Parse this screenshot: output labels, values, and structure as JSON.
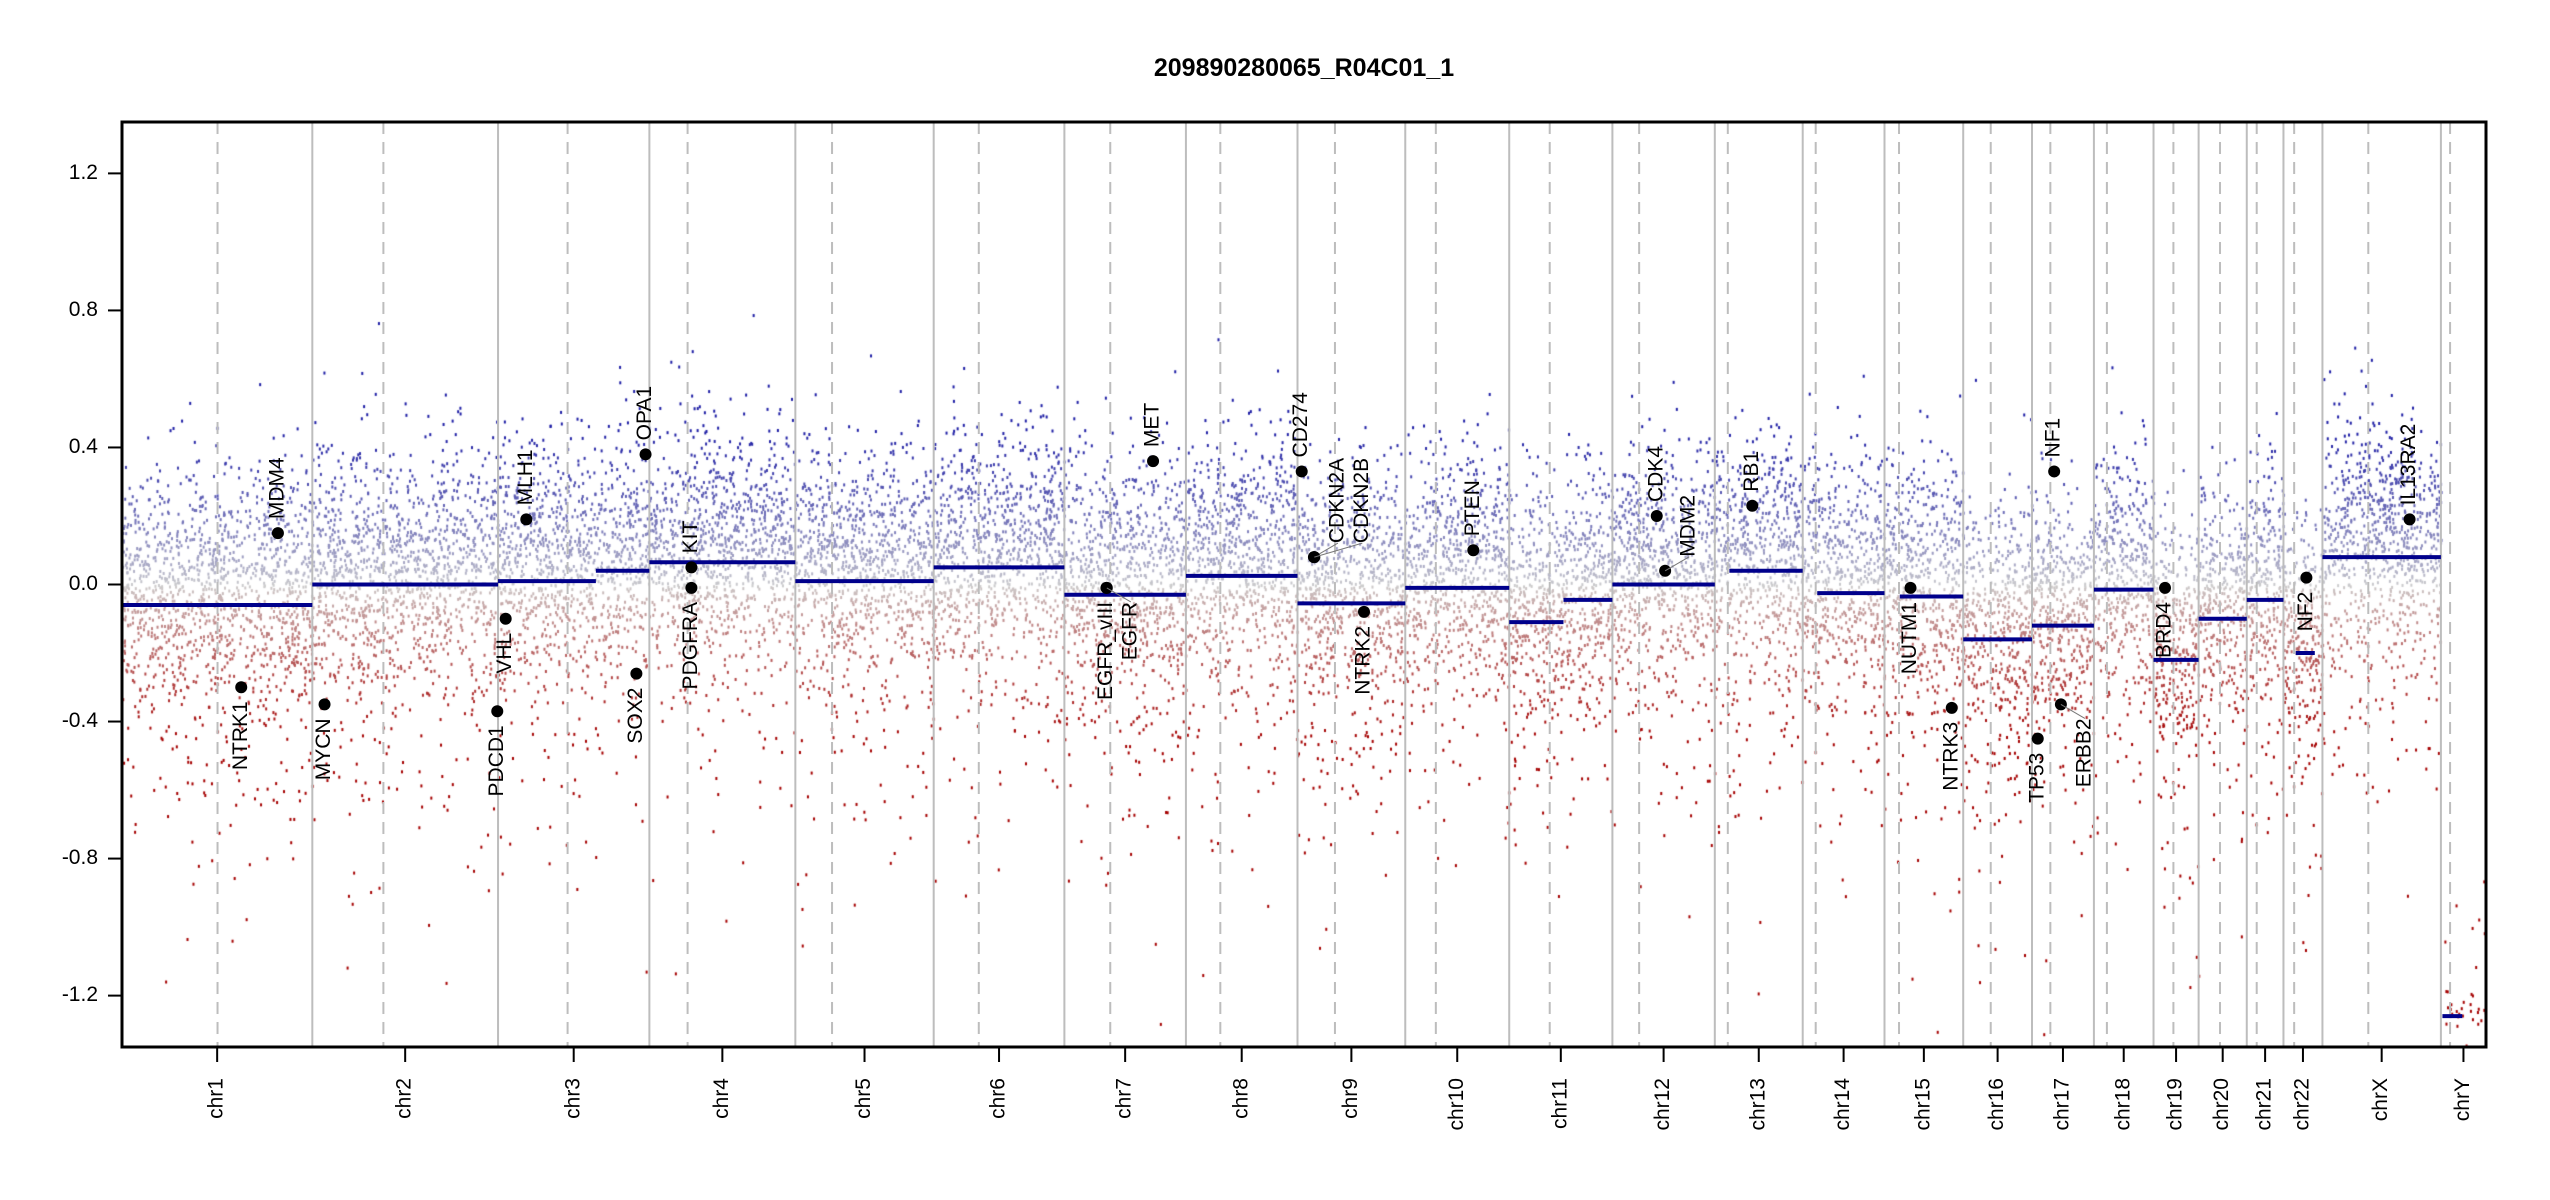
{
  "chart_data": {
    "type": "scatter",
    "title": "209890280065_R04C01_1",
    "xlabel": "",
    "ylabel": "",
    "ylim": [
      -1.35,
      1.35
    ],
    "yticks": [
      1.2,
      0.8,
      0.4,
      0.0,
      -0.4,
      -0.8,
      -1.2
    ],
    "ytick_labels": [
      "1.2",
      "0.8",
      "0.4",
      "0.0",
      "-0.4",
      "-0.8",
      "-1.2"
    ],
    "x_units": "Mb (genomic position, concatenated chromosomes)",
    "colors": {
      "segment": "#00008b",
      "gain": "#1a1aa0",
      "neutral": "#c8c8c8",
      "loss": "#a00000",
      "boundary": "#bdbdbd",
      "centromere": "#bdbdbd",
      "gene_point": "#000000"
    },
    "chromosomes": [
      {
        "name": "chr1",
        "length_mb": 249,
        "centromere_mb": 125,
        "segments": [
          {
            "start": 0,
            "end": 249,
            "mean": -0.06
          }
        ]
      },
      {
        "name": "chr2",
        "length_mb": 243,
        "centromere_mb": 93,
        "segments": [
          {
            "start": 0,
            "end": 243,
            "mean": 0.0
          }
        ]
      },
      {
        "name": "chr3",
        "length_mb": 198,
        "centromere_mb": 91,
        "segments": [
          {
            "start": 0,
            "end": 128,
            "mean": 0.01
          },
          {
            "start": 128,
            "end": 198,
            "mean": 0.04
          }
        ]
      },
      {
        "name": "chr4",
        "length_mb": 191,
        "centromere_mb": 50,
        "segments": [
          {
            "start": 0,
            "end": 191,
            "mean": 0.065
          }
        ]
      },
      {
        "name": "chr5",
        "length_mb": 181,
        "centromere_mb": 48,
        "segments": [
          {
            "start": 0,
            "end": 181,
            "mean": 0.01
          }
        ]
      },
      {
        "name": "chr6",
        "length_mb": 171,
        "centromere_mb": 59,
        "segments": [
          {
            "start": 0,
            "end": 171,
            "mean": 0.05
          }
        ]
      },
      {
        "name": "chr7",
        "length_mb": 159,
        "centromere_mb": 60,
        "segments": [
          {
            "start": 0,
            "end": 159,
            "mean": -0.03
          }
        ]
      },
      {
        "name": "chr8",
        "length_mb": 146,
        "centromere_mb": 45,
        "segments": [
          {
            "start": 0,
            "end": 146,
            "mean": 0.025
          }
        ]
      },
      {
        "name": "chr9",
        "length_mb": 141,
        "centromere_mb": 49,
        "segments": [
          {
            "start": 0,
            "end": 141,
            "mean": -0.055
          }
        ]
      },
      {
        "name": "chr10",
        "length_mb": 136,
        "centromere_mb": 40,
        "segments": [
          {
            "start": 0,
            "end": 136,
            "mean": -0.01
          }
        ]
      },
      {
        "name": "chr11",
        "length_mb": 135,
        "centromere_mb": 53,
        "segments": [
          {
            "start": 0,
            "end": 71,
            "mean": -0.11
          },
          {
            "start": 71,
            "end": 135,
            "mean": -0.045
          }
        ]
      },
      {
        "name": "chr12",
        "length_mb": 134,
        "centromere_mb": 35,
        "segments": [
          {
            "start": 0,
            "end": 134,
            "mean": 0.0
          }
        ]
      },
      {
        "name": "chr13",
        "length_mb": 115,
        "centromere_mb": 17,
        "segments": [
          {
            "start": 19,
            "end": 115,
            "mean": 0.04
          }
        ]
      },
      {
        "name": "chr14",
        "length_mb": 107,
        "centromere_mb": 17,
        "segments": [
          {
            "start": 19,
            "end": 107,
            "mean": -0.025
          }
        ]
      },
      {
        "name": "chr15",
        "length_mb": 103,
        "centromere_mb": 19,
        "segments": [
          {
            "start": 20,
            "end": 103,
            "mean": -0.035
          }
        ]
      },
      {
        "name": "chr16",
        "length_mb": 90,
        "centromere_mb": 36,
        "segments": [
          {
            "start": 0,
            "end": 90,
            "mean": -0.16
          }
        ]
      },
      {
        "name": "chr17",
        "length_mb": 81,
        "centromere_mb": 24,
        "segments": [
          {
            "start": 0,
            "end": 81,
            "mean": -0.12
          }
        ]
      },
      {
        "name": "chr18",
        "length_mb": 78,
        "centromere_mb": 17,
        "segments": [
          {
            "start": 0,
            "end": 78,
            "mean": -0.015
          }
        ]
      },
      {
        "name": "chr19",
        "length_mb": 59,
        "centromere_mb": 26,
        "segments": [
          {
            "start": 0,
            "end": 59,
            "mean": -0.22
          }
        ]
      },
      {
        "name": "chr20",
        "length_mb": 63,
        "centromere_mb": 28,
        "segments": [
          {
            "start": 0,
            "end": 63,
            "mean": -0.1
          }
        ]
      },
      {
        "name": "chr21",
        "length_mb": 48,
        "centromere_mb": 13,
        "segments": [
          {
            "start": 0,
            "end": 48,
            "mean": -0.045
          }
        ]
      },
      {
        "name": "chr22",
        "length_mb": 51,
        "centromere_mb": 14,
        "segments": [
          {
            "start": 16,
            "end": 41,
            "mean": -0.2
          }
        ]
      },
      {
        "name": "chrX",
        "length_mb": 155,
        "centromere_mb": 60,
        "segments": [
          {
            "start": 0,
            "end": 155,
            "mean": 0.08
          }
        ]
      },
      {
        "name": "chrY",
        "length_mb": 59,
        "centromere_mb": 12,
        "segments": [
          {
            "start": 2,
            "end": 28,
            "mean": -1.26
          }
        ]
      }
    ],
    "genes": [
      {
        "name": "NTRK1",
        "chr": "chr1",
        "pos_mb": 156,
        "value": -0.3
      },
      {
        "name": "MDM4",
        "chr": "chr1",
        "pos_mb": 204,
        "value": 0.15
      },
      {
        "name": "MYCN",
        "chr": "chr2",
        "pos_mb": 16,
        "value": -0.35
      },
      {
        "name": "PDCD1",
        "chr": "chr2",
        "pos_mb": 242,
        "value": -0.37
      },
      {
        "name": "VHL",
        "chr": "chr3",
        "pos_mb": 10,
        "value": -0.1
      },
      {
        "name": "MLH1",
        "chr": "chr3",
        "pos_mb": 37,
        "value": 0.19
      },
      {
        "name": "SOX2",
        "chr": "chr3",
        "pos_mb": 181,
        "value": -0.26
      },
      {
        "name": "OPA1",
        "chr": "chr3",
        "pos_mb": 193,
        "value": 0.38
      },
      {
        "name": "KIT",
        "chr": "chr4",
        "pos_mb": 55,
        "value": 0.05
      },
      {
        "name": "PDGFRA",
        "chr": "chr4",
        "pos_mb": 55,
        "value": -0.01
      },
      {
        "name": "EGFR_vIII",
        "chr": "chr7",
        "pos_mb": 55,
        "value": -0.01
      },
      {
        "name": "EGFR",
        "chr": "chr7",
        "pos_mb": 55.5,
        "value": -0.01
      },
      {
        "name": "MET",
        "chr": "chr7",
        "pos_mb": 116,
        "value": 0.36
      },
      {
        "name": "CD274",
        "chr": "chr9",
        "pos_mb": 5.5,
        "value": 0.33
      },
      {
        "name": "CDKN2A",
        "chr": "chr9",
        "pos_mb": 21.5,
        "value": 0.08
      },
      {
        "name": "CDKN2B",
        "chr": "chr9",
        "pos_mb": 22,
        "value": 0.08
      },
      {
        "name": "NTRK2",
        "chr": "chr9",
        "pos_mb": 87,
        "value": -0.08
      },
      {
        "name": "PTEN",
        "chr": "chr10",
        "pos_mb": 89,
        "value": 0.1
      },
      {
        "name": "CDK4",
        "chr": "chr12",
        "pos_mb": 58,
        "value": 0.2
      },
      {
        "name": "MDM2",
        "chr": "chr12",
        "pos_mb": 69,
        "value": 0.04
      },
      {
        "name": "RB1",
        "chr": "chr13",
        "pos_mb": 49,
        "value": 0.23
      },
      {
        "name": "NUTM1",
        "chr": "chr15",
        "pos_mb": 34,
        "value": -0.01
      },
      {
        "name": "NTRK3",
        "chr": "chr15",
        "pos_mb": 88,
        "value": -0.36
      },
      {
        "name": "TP53",
        "chr": "chr17",
        "pos_mb": 7.5,
        "value": -0.45
      },
      {
        "name": "NF1",
        "chr": "chr17",
        "pos_mb": 29,
        "value": 0.33
      },
      {
        "name": "ERBB2",
        "chr": "chr17",
        "pos_mb": 37.8,
        "value": -0.35
      },
      {
        "name": "BRD4",
        "chr": "chr19",
        "pos_mb": 15,
        "value": -0.01
      },
      {
        "name": "NF2",
        "chr": "chr22",
        "pos_mb": 30,
        "value": 0.02
      },
      {
        "name": "IL13RA2",
        "chr": "chrX",
        "pos_mb": 114,
        "value": 0.19
      }
    ]
  }
}
